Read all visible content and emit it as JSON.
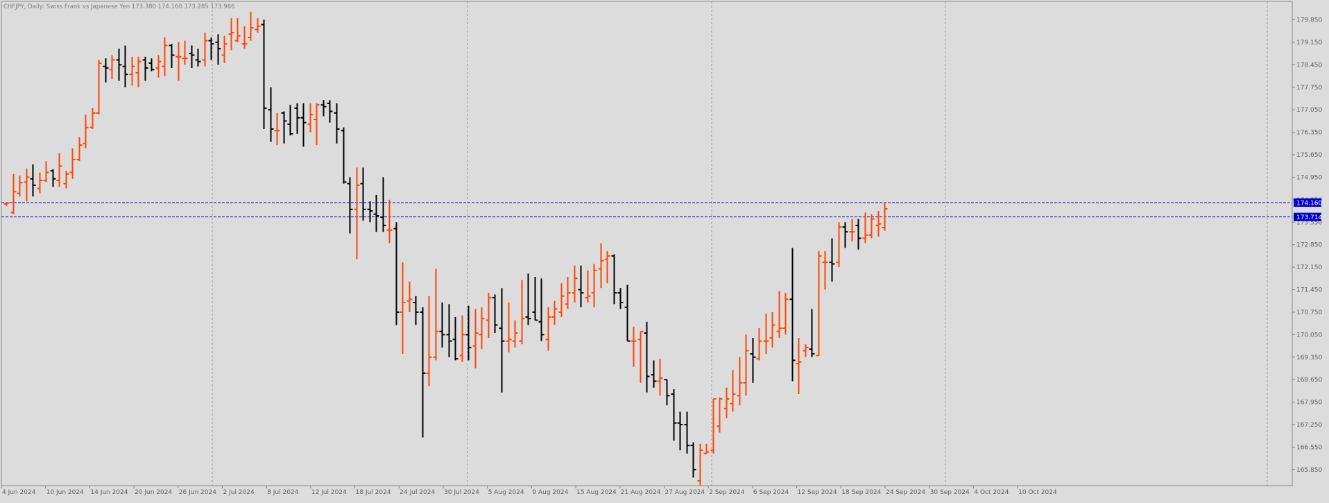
{
  "header": {
    "text": "CHFJPY, Daily:  Swiss Frank vs Japanese Yen  173.380 174.160 173.285 173.966"
  },
  "colors": {
    "background": "#dcdcdc",
    "bull_bar": "#ff4500",
    "bear_bar": "#000000",
    "grid": "#9a9a9a",
    "level_line": "#0000cd",
    "level_label_bg": "#0000cd",
    "axis_text": "#606060"
  },
  "chart_data": {
    "type": "ohlc",
    "symbol": "CHFJPY",
    "timeframe": "Daily",
    "ylim": [
      165.35,
      180.25
    ],
    "y_ticks": [
      "179.850",
      "179.150",
      "178.450",
      "177.750",
      "177.050",
      "176.350",
      "175.650",
      "174.950",
      "174.250",
      "173.550",
      "172.850",
      "172.150",
      "171.450",
      "170.750",
      "170.050",
      "169.350",
      "168.650",
      "167.950",
      "167.250",
      "166.550",
      "165.850"
    ],
    "x_labels": [
      "4 Jun 2024",
      "10 Jun 2024",
      "14 Jun 2024",
      "20 Jun 2024",
      "26 Jun 2024",
      "2 Jul 2024",
      "8 Jul 2024",
      "12 Jul 2024",
      "18 Jul 2024",
      "24 Jul 2024",
      "30 Jul 2024",
      "5 Aug 2024",
      "9 Aug 2024",
      "15 Aug 2024",
      "21 Aug 2024",
      "27 Aug 2024",
      "2 Sep 2024",
      "6 Sep 2024",
      "12 Sep 2024",
      "18 Sep 2024",
      "24 Sep 2024",
      "30 Sep 2024",
      "4 Oct 2024",
      "10 Oct 2024"
    ],
    "price_levels": [
      {
        "value": 174.16,
        "label": "174.160"
      },
      {
        "value": 173.714,
        "label": "173.714"
      }
    ],
    "bars": [
      {
        "o": 174.12,
        "h": 174.18,
        "l": 174.05,
        "c": 174.15
      },
      {
        "o": 173.85,
        "h": 175.05,
        "l": 173.8,
        "c": 174.5
      },
      {
        "o": 174.45,
        "h": 175.0,
        "l": 174.35,
        "c": 174.78
      },
      {
        "o": 174.8,
        "h": 175.22,
        "l": 174.2,
        "c": 174.95
      },
      {
        "o": 174.9,
        "h": 175.35,
        "l": 174.35,
        "c": 174.7
      },
      {
        "o": 174.6,
        "h": 175.1,
        "l": 174.45,
        "c": 174.85
      },
      {
        "o": 174.85,
        "h": 175.45,
        "l": 174.8,
        "c": 175.1
      },
      {
        "o": 175.15,
        "h": 175.2,
        "l": 174.65,
        "c": 174.9
      },
      {
        "o": 174.85,
        "h": 175.7,
        "l": 174.65,
        "c": 175.3
      },
      {
        "o": 174.75,
        "h": 175.15,
        "l": 174.6,
        "c": 175.05
      },
      {
        "o": 175.1,
        "h": 175.85,
        "l": 174.9,
        "c": 175.5
      },
      {
        "o": 175.5,
        "h": 176.2,
        "l": 175.45,
        "c": 175.95
      },
      {
        "o": 176.0,
        "h": 176.9,
        "l": 175.85,
        "c": 176.5
      },
      {
        "o": 176.5,
        "h": 177.1,
        "l": 176.45,
        "c": 176.95
      },
      {
        "o": 176.95,
        "h": 178.6,
        "l": 176.9,
        "c": 178.5
      },
      {
        "o": 178.4,
        "h": 178.65,
        "l": 177.9,
        "c": 178.35
      },
      {
        "o": 178.3,
        "h": 178.75,
        "l": 178.0,
        "c": 178.6
      },
      {
        "o": 178.6,
        "h": 178.95,
        "l": 177.95,
        "c": 178.45
      },
      {
        "o": 178.4,
        "h": 179.05,
        "l": 177.75,
        "c": 178.15
      },
      {
        "o": 178.15,
        "h": 178.7,
        "l": 177.8,
        "c": 178.4
      },
      {
        "o": 178.2,
        "h": 178.7,
        "l": 177.75,
        "c": 178.55
      },
      {
        "o": 178.6,
        "h": 178.7,
        "l": 177.95,
        "c": 178.35
      },
      {
        "o": 178.5,
        "h": 178.65,
        "l": 178.25,
        "c": 178.3
      },
      {
        "o": 178.35,
        "h": 178.75,
        "l": 178.05,
        "c": 178.55
      },
      {
        "o": 178.4,
        "h": 179.3,
        "l": 178.1,
        "c": 179.05
      },
      {
        "o": 179.05,
        "h": 179.1,
        "l": 178.35,
        "c": 178.75
      },
      {
        "o": 178.7,
        "h": 179.15,
        "l": 177.95,
        "c": 178.7
      },
      {
        "o": 178.65,
        "h": 179.2,
        "l": 178.45,
        "c": 178.65
      },
      {
        "o": 178.8,
        "h": 179.05,
        "l": 178.35,
        "c": 178.75
      },
      {
        "o": 178.6,
        "h": 178.95,
        "l": 178.4,
        "c": 178.55
      },
      {
        "o": 178.6,
        "h": 179.45,
        "l": 178.4,
        "c": 179.2
      },
      {
        "o": 179.2,
        "h": 179.3,
        "l": 178.6,
        "c": 179.1
      },
      {
        "o": 179.15,
        "h": 179.4,
        "l": 178.45,
        "c": 178.95
      },
      {
        "o": 178.75,
        "h": 179.35,
        "l": 178.5,
        "c": 179.1
      },
      {
        "o": 179.4,
        "h": 179.9,
        "l": 178.9,
        "c": 179.45
      },
      {
        "o": 179.2,
        "h": 179.9,
        "l": 179.15,
        "c": 179.35
      },
      {
        "o": 179.1,
        "h": 179.65,
        "l": 178.95,
        "c": 179.1
      },
      {
        "o": 179.3,
        "h": 180.1,
        "l": 179.2,
        "c": 179.6
      },
      {
        "o": 179.55,
        "h": 179.9,
        "l": 179.45,
        "c": 179.65
      },
      {
        "o": 179.7,
        "h": 179.85,
        "l": 176.45,
        "c": 177.1
      },
      {
        "o": 177.05,
        "h": 177.75,
        "l": 176.05,
        "c": 176.45
      },
      {
        "o": 176.4,
        "h": 176.95,
        "l": 175.95,
        "c": 176.4
      },
      {
        "o": 176.95,
        "h": 177.0,
        "l": 176.0,
        "c": 176.7
      },
      {
        "o": 176.6,
        "h": 177.2,
        "l": 176.25,
        "c": 176.3
      },
      {
        "o": 177.1,
        "h": 177.25,
        "l": 176.3,
        "c": 176.8
      },
      {
        "o": 176.8,
        "h": 177.25,
        "l": 175.9,
        "c": 176.65
      },
      {
        "o": 176.6,
        "h": 177.25,
        "l": 176.35,
        "c": 176.9
      },
      {
        "o": 176.75,
        "h": 177.25,
        "l": 175.95,
        "c": 177.2
      },
      {
        "o": 177.2,
        "h": 177.35,
        "l": 176.85,
        "c": 177.15
      },
      {
        "o": 177.25,
        "h": 177.35,
        "l": 176.65,
        "c": 177.0
      },
      {
        "o": 176.95,
        "h": 177.25,
        "l": 176.0,
        "c": 176.45
      },
      {
        "o": 176.4,
        "h": 176.5,
        "l": 174.75,
        "c": 174.8
      },
      {
        "o": 174.75,
        "h": 174.95,
        "l": 173.2,
        "c": 173.95
      },
      {
        "o": 173.95,
        "h": 175.25,
        "l": 172.4,
        "c": 174.7
      },
      {
        "o": 174.75,
        "h": 175.25,
        "l": 173.6,
        "c": 173.95
      },
      {
        "o": 173.95,
        "h": 174.2,
        "l": 173.55,
        "c": 173.9
      },
      {
        "o": 173.8,
        "h": 174.4,
        "l": 173.25,
        "c": 173.75
      },
      {
        "o": 173.7,
        "h": 174.95,
        "l": 173.25,
        "c": 173.45
      },
      {
        "o": 173.3,
        "h": 174.25,
        "l": 172.9,
        "c": 173.3
      },
      {
        "o": 173.35,
        "h": 173.55,
        "l": 170.35,
        "c": 170.75
      },
      {
        "o": 170.75,
        "h": 172.3,
        "l": 169.45,
        "c": 171.05
      },
      {
        "o": 171.1,
        "h": 171.7,
        "l": 170.75,
        "c": 171.15
      },
      {
        "o": 171.05,
        "h": 171.25,
        "l": 170.35,
        "c": 170.75
      },
      {
        "o": 170.75,
        "h": 170.9,
        "l": 166.85,
        "c": 168.85
      },
      {
        "o": 168.85,
        "h": 171.25,
        "l": 168.45,
        "c": 169.35
      },
      {
        "o": 169.35,
        "h": 172.1,
        "l": 169.25,
        "c": 170.15
      },
      {
        "o": 170.15,
        "h": 171.05,
        "l": 169.65,
        "c": 170.05
      },
      {
        "o": 170.05,
        "h": 171.0,
        "l": 169.35,
        "c": 169.85
      },
      {
        "o": 169.9,
        "h": 170.6,
        "l": 169.25,
        "c": 169.3
      },
      {
        "o": 169.4,
        "h": 170.65,
        "l": 169.2,
        "c": 170.05
      },
      {
        "o": 170.05,
        "h": 170.95,
        "l": 169.25,
        "c": 169.65
      },
      {
        "o": 169.7,
        "h": 170.85,
        "l": 169.0,
        "c": 170.1
      },
      {
        "o": 170.05,
        "h": 170.9,
        "l": 169.6,
        "c": 170.55
      },
      {
        "o": 170.5,
        "h": 171.35,
        "l": 169.95,
        "c": 171.2
      },
      {
        "o": 171.2,
        "h": 171.3,
        "l": 170.1,
        "c": 170.35
      },
      {
        "o": 170.25,
        "h": 171.5,
        "l": 168.25,
        "c": 169.85
      },
      {
        "o": 169.85,
        "h": 171.05,
        "l": 169.5,
        "c": 169.9
      },
      {
        "o": 169.85,
        "h": 170.5,
        "l": 169.65,
        "c": 170.1
      },
      {
        "o": 169.85,
        "h": 171.75,
        "l": 169.75,
        "c": 170.55
      },
      {
        "o": 170.6,
        "h": 171.95,
        "l": 170.35,
        "c": 170.55
      },
      {
        "o": 170.75,
        "h": 171.85,
        "l": 170.5,
        "c": 170.5
      },
      {
        "o": 170.45,
        "h": 171.8,
        "l": 169.85,
        "c": 170.05
      },
      {
        "o": 169.9,
        "h": 170.9,
        "l": 169.55,
        "c": 170.6
      },
      {
        "o": 170.6,
        "h": 171.1,
        "l": 170.35,
        "c": 170.85
      },
      {
        "o": 170.75,
        "h": 171.65,
        "l": 170.6,
        "c": 171.25
      },
      {
        "o": 171.0,
        "h": 171.85,
        "l": 170.85,
        "c": 171.35
      },
      {
        "o": 171.35,
        "h": 172.2,
        "l": 171.05,
        "c": 171.8
      },
      {
        "o": 171.45,
        "h": 172.2,
        "l": 170.9,
        "c": 171.35
      },
      {
        "o": 171.2,
        "h": 172.05,
        "l": 171.05,
        "c": 171.25
      },
      {
        "o": 171.35,
        "h": 172.25,
        "l": 170.9,
        "c": 172.05
      },
      {
        "o": 172.1,
        "h": 172.9,
        "l": 171.5,
        "c": 172.35
      },
      {
        "o": 172.4,
        "h": 172.65,
        "l": 171.65,
        "c": 172.5
      },
      {
        "o": 172.5,
        "h": 172.55,
        "l": 171.0,
        "c": 171.35
      },
      {
        "o": 171.35,
        "h": 171.5,
        "l": 170.85,
        "c": 171.05
      },
      {
        "o": 170.9,
        "h": 171.6,
        "l": 169.85,
        "c": 169.85
      },
      {
        "o": 169.85,
        "h": 170.3,
        "l": 169.05,
        "c": 169.85
      },
      {
        "o": 169.9,
        "h": 170.15,
        "l": 168.55,
        "c": 170.15
      },
      {
        "o": 170.1,
        "h": 170.45,
        "l": 168.25,
        "c": 168.75
      },
      {
        "o": 168.8,
        "h": 169.25,
        "l": 168.4,
        "c": 168.6
      },
      {
        "o": 168.6,
        "h": 169.3,
        "l": 168.15,
        "c": 168.7
      },
      {
        "o": 168.65,
        "h": 168.65,
        "l": 167.85,
        "c": 168.15
      },
      {
        "o": 168.2,
        "h": 168.35,
        "l": 166.75,
        "c": 167.3
      },
      {
        "o": 167.3,
        "h": 167.65,
        "l": 166.45,
        "c": 167.25
      },
      {
        "o": 167.25,
        "h": 167.65,
        "l": 166.35,
        "c": 166.6
      },
      {
        "o": 166.6,
        "h": 166.7,
        "l": 165.6,
        "c": 165.85
      },
      {
        "o": 165.5,
        "h": 166.65,
        "l": 165.35,
        "c": 166.45
      },
      {
        "o": 166.35,
        "h": 166.65,
        "l": 166.35,
        "c": 166.4
      },
      {
        "o": 166.45,
        "h": 168.05,
        "l": 166.35,
        "c": 168.05
      },
      {
        "o": 167.2,
        "h": 168.1,
        "l": 167.0,
        "c": 168.05
      },
      {
        "o": 167.75,
        "h": 168.4,
        "l": 167.45,
        "c": 168.05
      },
      {
        "o": 167.9,
        "h": 168.95,
        "l": 167.65,
        "c": 168.2
      },
      {
        "o": 168.15,
        "h": 169.35,
        "l": 167.85,
        "c": 168.55
      },
      {
        "o": 168.55,
        "h": 170.05,
        "l": 168.15,
        "c": 169.55
      },
      {
        "o": 169.45,
        "h": 169.95,
        "l": 168.55,
        "c": 169.35
      },
      {
        "o": 169.3,
        "h": 170.25,
        "l": 169.25,
        "c": 169.85
      },
      {
        "o": 169.85,
        "h": 170.7,
        "l": 169.45,
        "c": 169.85
      },
      {
        "o": 169.95,
        "h": 170.75,
        "l": 169.65,
        "c": 170.35
      },
      {
        "o": 170.15,
        "h": 171.4,
        "l": 169.95,
        "c": 170.25
      },
      {
        "o": 170.25,
        "h": 171.35,
        "l": 170.05,
        "c": 171.15
      },
      {
        "o": 171.15,
        "h": 172.75,
        "l": 168.6,
        "c": 169.25
      },
      {
        "o": 169.15,
        "h": 169.95,
        "l": 168.2,
        "c": 169.2
      },
      {
        "o": 169.55,
        "h": 169.75,
        "l": 169.35,
        "c": 169.65
      },
      {
        "o": 169.6,
        "h": 170.85,
        "l": 169.35,
        "c": 169.45
      },
      {
        "o": 169.4,
        "h": 172.65,
        "l": 169.4,
        "c": 172.5
      },
      {
        "o": 172.3,
        "h": 172.65,
        "l": 171.45,
        "c": 172.3
      },
      {
        "o": 172.3,
        "h": 173.05,
        "l": 171.7,
        "c": 172.25
      },
      {
        "o": 172.3,
        "h": 173.55,
        "l": 172.15,
        "c": 173.4
      },
      {
        "o": 173.4,
        "h": 173.55,
        "l": 172.75,
        "c": 173.25
      },
      {
        "o": 173.25,
        "h": 173.65,
        "l": 172.95,
        "c": 173.25
      },
      {
        "o": 173.45,
        "h": 173.65,
        "l": 172.7,
        "c": 173.05
      },
      {
        "o": 173.05,
        "h": 173.85,
        "l": 172.9,
        "c": 173.15
      },
      {
        "o": 173.15,
        "h": 173.8,
        "l": 173.05,
        "c": 173.65
      },
      {
        "o": 173.45,
        "h": 173.9,
        "l": 173.1,
        "c": 173.5
      },
      {
        "o": 173.38,
        "h": 174.16,
        "l": 173.285,
        "c": 173.966
      }
    ]
  }
}
